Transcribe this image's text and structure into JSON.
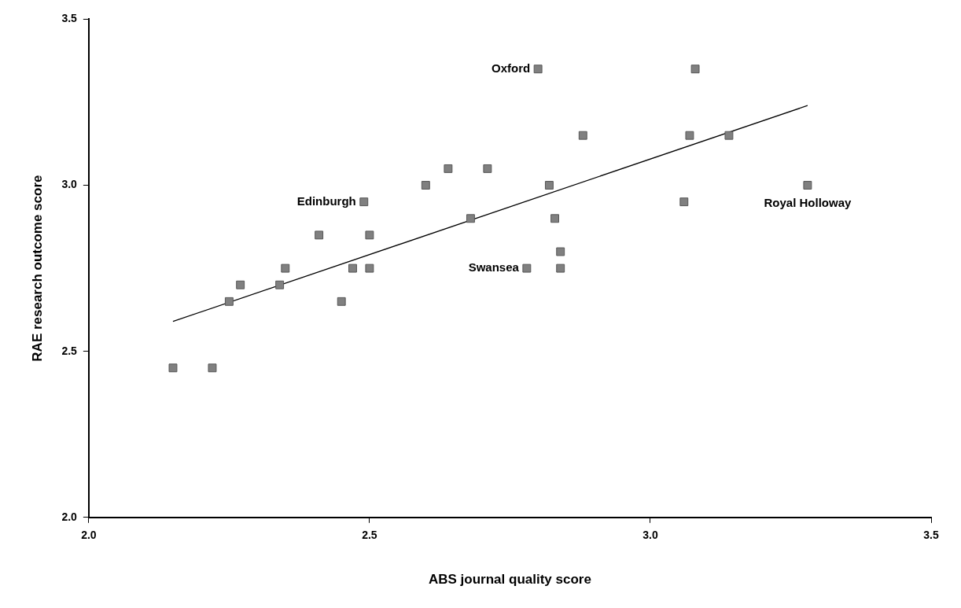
{
  "chart_data": {
    "type": "scatter",
    "xlabel": "ABS journal quality score",
    "ylabel": "RAE research outcome score",
    "xlim": [
      2.0,
      3.5
    ],
    "ylim": [
      2.0,
      3.5
    ],
    "xticks": [
      {
        "value": 2,
        "label": "2.0"
      },
      {
        "value": 2.5,
        "label": "2.5"
      },
      {
        "value": 3,
        "label": "3.0"
      },
      {
        "value": 3.5,
        "label": "3.5"
      }
    ],
    "yticks": [
      {
        "value": 2,
        "label": "2.0"
      },
      {
        "value": 2.5,
        "label": "2.5"
      },
      {
        "value": 3,
        "label": "3.0"
      },
      {
        "value": 3.5,
        "label": "3.5"
      }
    ],
    "grid": false,
    "legend": false,
    "series": [
      {
        "type": "scatter",
        "marker": "square",
        "color": "#808080",
        "x": [
          2.15,
          2.22,
          2.25,
          2.27,
          2.34,
          2.35,
          2.41,
          2.45,
          2.47,
          2.49,
          2.5,
          2.5,
          2.6,
          2.64,
          2.68,
          2.71,
          2.78,
          2.8,
          2.82,
          2.83,
          2.84,
          2.84,
          2.88,
          3.06,
          3.07,
          3.08,
          3.14,
          3.28
        ],
        "values": [
          2.45,
          2.45,
          2.65,
          2.7,
          2.7,
          2.75,
          2.85,
          2.65,
          2.75,
          2.95,
          2.85,
          2.75,
          3.0,
          3.05,
          2.9,
          3.05,
          2.75,
          3.35,
          3.0,
          2.9,
          2.75,
          2.8,
          3.15,
          2.95,
          3.15,
          3.35,
          3.15,
          3.0
        ]
      },
      {
        "type": "line",
        "marker": "none",
        "line_style": "solid",
        "color": "#000000",
        "x": [
          2.15,
          3.28
        ],
        "values": [
          2.59,
          3.24
        ]
      }
    ],
    "annotations": [
      {
        "text": "Oxford",
        "x": 2.8,
        "y": 3.35
      },
      {
        "text": "Edinburgh",
        "x": 2.49,
        "y": 2.95
      },
      {
        "text": "Swansea",
        "x": 2.78,
        "y": 2.75
      },
      {
        "text": "Royal Holloway",
        "x": 3.28,
        "y": 3.0
      }
    ]
  }
}
